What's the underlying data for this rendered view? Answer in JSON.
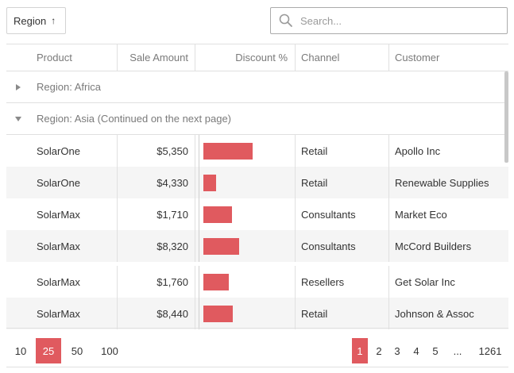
{
  "toolbar": {
    "group_button_label": "Region",
    "search_placeholder": "Search..."
  },
  "columns": [
    "Product",
    "Sale Amount",
    "Discount %",
    "Channel",
    "Customer"
  ],
  "groups": [
    {
      "label": "Region: Africa",
      "expanded": false
    },
    {
      "label": "Region: Asia (Continued on the next page)",
      "expanded": true
    }
  ],
  "rows": [
    {
      "product": "SolarOne",
      "amount": "$5,350",
      "discount_bar": 0.62,
      "channel": "Retail",
      "customer": "Apollo Inc"
    },
    {
      "product": "SolarOne",
      "amount": "$4,330",
      "discount_bar": 0.16,
      "channel": "Retail",
      "customer": "Renewable Supplies"
    },
    {
      "product": "SolarMax",
      "amount": "$1,710",
      "discount_bar": 0.36,
      "channel": "Consultants",
      "customer": "Market Eco"
    },
    {
      "product": "SolarMax",
      "amount": "$8,320",
      "discount_bar": 0.45,
      "channel": "Consultants",
      "customer": "McCord Builders"
    },
    {
      "product": "SolarMax",
      "amount": "$1,760",
      "discount_bar": 0.32,
      "channel": "Resellers",
      "customer": "Get Solar Inc"
    },
    {
      "product": "SolarMax",
      "amount": "$8,440",
      "discount_bar": 0.37,
      "channel": "Retail",
      "customer": "Johnson & Assoc"
    }
  ],
  "pager": {
    "sizes": [
      "10",
      "25",
      "50",
      "100"
    ],
    "selected_size": "25",
    "pages": [
      "1",
      "2",
      "3",
      "4",
      "5",
      "...",
      "1261"
    ],
    "current_page": "1"
  },
  "colors": {
    "accent": "#e05a5f",
    "alt_row": "#f5f5f5",
    "border": "#e0e0e0"
  }
}
